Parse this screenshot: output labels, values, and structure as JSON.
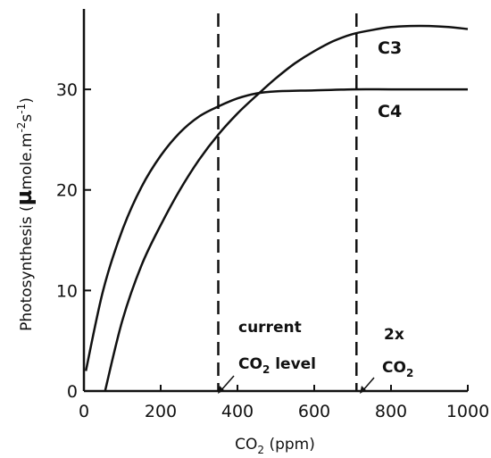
{
  "chart_data": {
    "type": "line",
    "xlabel": "CO2 (ppm)",
    "ylabel": "Photosynthesis (µmole.m-2s-1)",
    "xlim": [
      0,
      1000
    ],
    "ylim": [
      0,
      38
    ],
    "x_ticks": [
      0,
      200,
      400,
      600,
      800,
      1000
    ],
    "y_ticks": [
      0,
      10,
      20,
      30
    ],
    "grid": false,
    "legend": "none",
    "series": [
      {
        "name": "C3",
        "label_text": "C3",
        "x": [
          55,
          100,
          150,
          200,
          250,
          300,
          350,
          400,
          450,
          500,
          550,
          600,
          650,
          700,
          750,
          800,
          850,
          900,
          950,
          1000
        ],
        "y": [
          0,
          7,
          12.5,
          16.5,
          20,
          23,
          25.5,
          27.6,
          29.4,
          31.1,
          32.6,
          33.8,
          34.8,
          35.5,
          35.9,
          36.2,
          36.3,
          36.3,
          36.2,
          36.0
        ]
      },
      {
        "name": "C4",
        "label_text": "C4",
        "x": [
          5,
          50,
          100,
          150,
          200,
          250,
          300,
          350,
          400,
          450,
          500,
          600,
          700,
          800,
          900,
          1000
        ],
        "y": [
          2,
          10,
          16,
          20.3,
          23.4,
          25.7,
          27.3,
          28.3,
          29.1,
          29.6,
          29.8,
          29.9,
          30.0,
          30.0,
          30.0,
          30.0
        ]
      }
    ],
    "reference_lines": [
      {
        "x": 350,
        "style": "dashed",
        "label_top": "current",
        "label_bottom": "CO2 level"
      },
      {
        "x": 710,
        "style": "dashed",
        "label_top": "2x",
        "label_bottom": "CO2"
      }
    ]
  }
}
